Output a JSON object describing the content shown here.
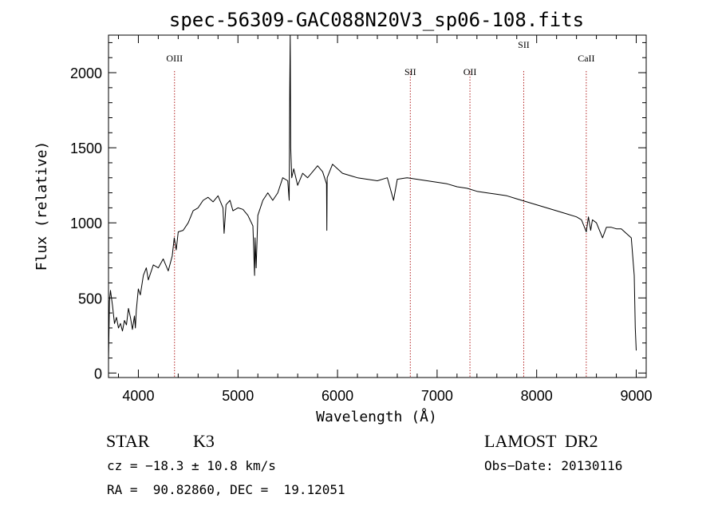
{
  "chart_data": {
    "type": "line",
    "title": "spec-56309-GAC088N20V3_sp06-108.fits",
    "xlabel": "Wavelength (Å)",
    "ylabel": "Flux (relative)",
    "xlim": [
      3700,
      9100
    ],
    "ylim": [
      -30,
      2250
    ],
    "x_ticks": [
      4000,
      5000,
      6000,
      7000,
      8000,
      9000
    ],
    "y_ticks": [
      0,
      500,
      1000,
      1500,
      2000
    ],
    "grid": false,
    "series": [
      {
        "color": "#000000",
        "x": [
          3700,
          3710,
          3720,
          3740,
          3760,
          3780,
          3800,
          3820,
          3840,
          3860,
          3880,
          3900,
          3920,
          3940,
          3960,
          3970,
          3980,
          4000,
          4020,
          4050,
          4080,
          4100,
          4150,
          4200,
          4250,
          4300,
          4340,
          4360,
          4380,
          4400,
          4450,
          4500,
          4550,
          4600,
          4650,
          4700,
          4750,
          4800,
          4850,
          4861,
          4880,
          4920,
          4950,
          5000,
          5050,
          5100,
          5150,
          5167,
          5172,
          5183,
          5200,
          5250,
          5300,
          5350,
          5400,
          5450,
          5500,
          5515,
          5520,
          5525,
          5530,
          5540,
          5560,
          5600,
          5650,
          5700,
          5750,
          5800,
          5850,
          5890,
          5893,
          5896,
          5950,
          6000,
          6050,
          6100,
          6150,
          6200,
          6300,
          6400,
          6500,
          6563,
          6600,
          6700,
          6800,
          6900,
          7000,
          7100,
          7200,
          7300,
          7400,
          7500,
          7600,
          7700,
          7800,
          7900,
          8000,
          8100,
          8200,
          8300,
          8400,
          8450,
          8498,
          8520,
          8542,
          8560,
          8600,
          8662,
          8700,
          8750,
          8800,
          8850,
          8900,
          8950,
          8980,
          8990,
          9000
        ],
        "y": [
          80,
          480,
          550,
          450,
          330,
          370,
          300,
          330,
          280,
          350,
          320,
          430,
          370,
          290,
          380,
          300,
          420,
          560,
          520,
          650,
          700,
          620,
          720,
          700,
          760,
          680,
          780,
          900,
          820,
          940,
          950,
          1000,
          1080,
          1100,
          1150,
          1170,
          1140,
          1180,
          1100,
          930,
          1120,
          1150,
          1080,
          1100,
          1090,
          1050,
          980,
          650,
          900,
          700,
          1050,
          1150,
          1200,
          1150,
          1200,
          1300,
          1280,
          1150,
          1900,
          2250,
          1500,
          1300,
          1360,
          1250,
          1330,
          1300,
          1340,
          1380,
          1340,
          1260,
          950,
          1300,
          1390,
          1360,
          1330,
          1320,
          1310,
          1300,
          1290,
          1280,
          1300,
          1150,
          1290,
          1300,
          1290,
          1280,
          1270,
          1260,
          1240,
          1230,
          1210,
          1200,
          1190,
          1180,
          1160,
          1140,
          1120,
          1100,
          1080,
          1060,
          1040,
          1020,
          940,
          1040,
          950,
          1020,
          1000,
          900,
          970,
          970,
          960,
          960,
          930,
          900,
          650,
          300,
          150
        ]
      }
    ],
    "annotations": [
      {
        "label": "OIII",
        "x": 4363
      },
      {
        "label": "SII",
        "x": 6731
      },
      {
        "label": "OII",
        "x": 7330
      },
      {
        "label": "SII",
        "x": 7870
      },
      {
        "label": "CaII",
        "x": 8498
      }
    ]
  },
  "footer": {
    "object_class": "STAR",
    "subclass": "K3",
    "survey": "LAMOST  DR2",
    "cz": "cz = −18.3 ± 10.8 km/s",
    "obs_date": "Obs−Date: 20130116",
    "coords": "RA =  90.82860, DEC =  19.12051"
  }
}
